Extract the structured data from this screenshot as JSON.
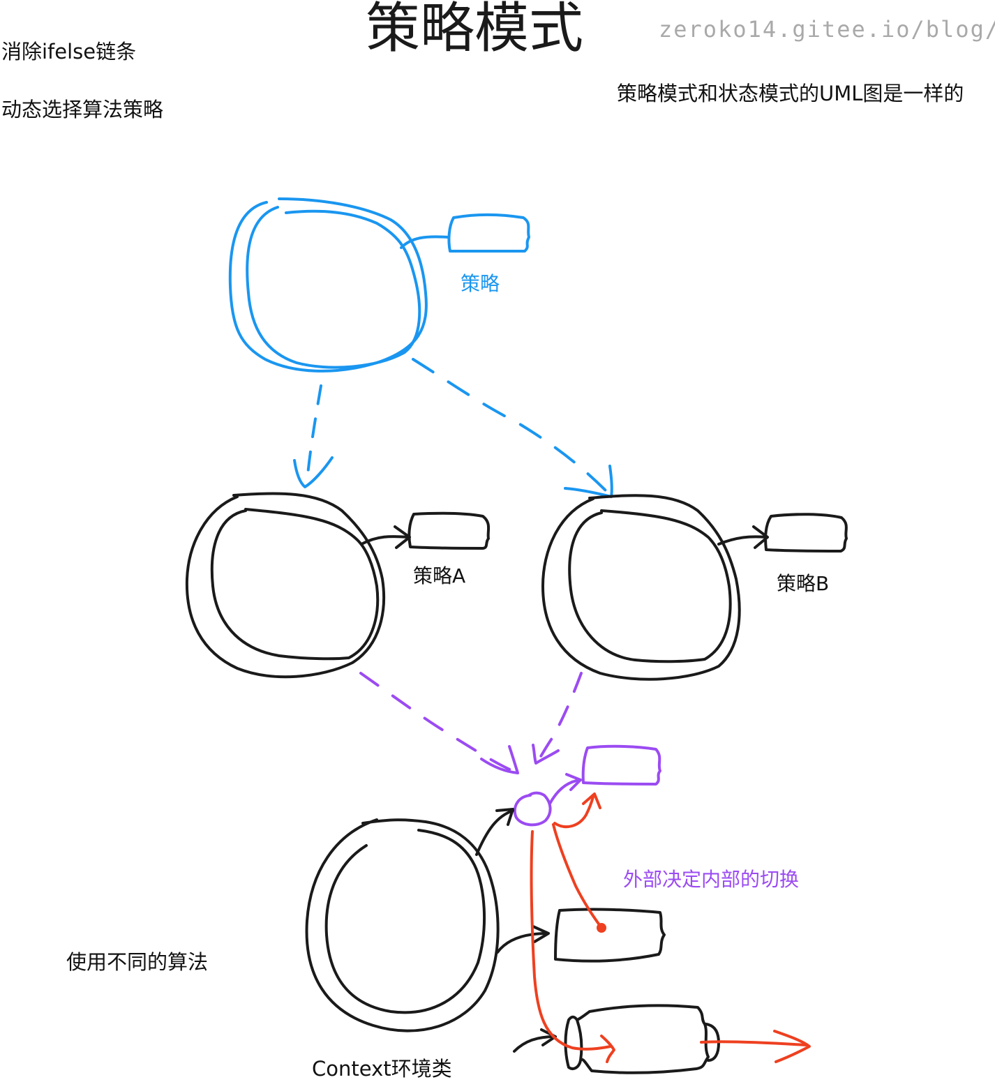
{
  "title": "策略模式",
  "watermark": "zeroko14.gitee.io/blog/",
  "notes": {
    "eliminate_ifelse": "消除ifelse链条",
    "dynamic_select": "动态选择算法策略",
    "uml_same": "策略模式和状态模式的UML图是一样的",
    "use_different": "使用不同的算法"
  },
  "labels": {
    "strategy": "策略",
    "strategy_a": "策略A",
    "strategy_b": "策略B",
    "context": "Context环境类",
    "switch_note": "外部决定内部的切换"
  },
  "colors": {
    "blue": "#1a96f0",
    "black": "#1a1a1a",
    "purple": "#9b4bf2",
    "red": "#ee4020",
    "watermark": "#a9a9a9"
  }
}
